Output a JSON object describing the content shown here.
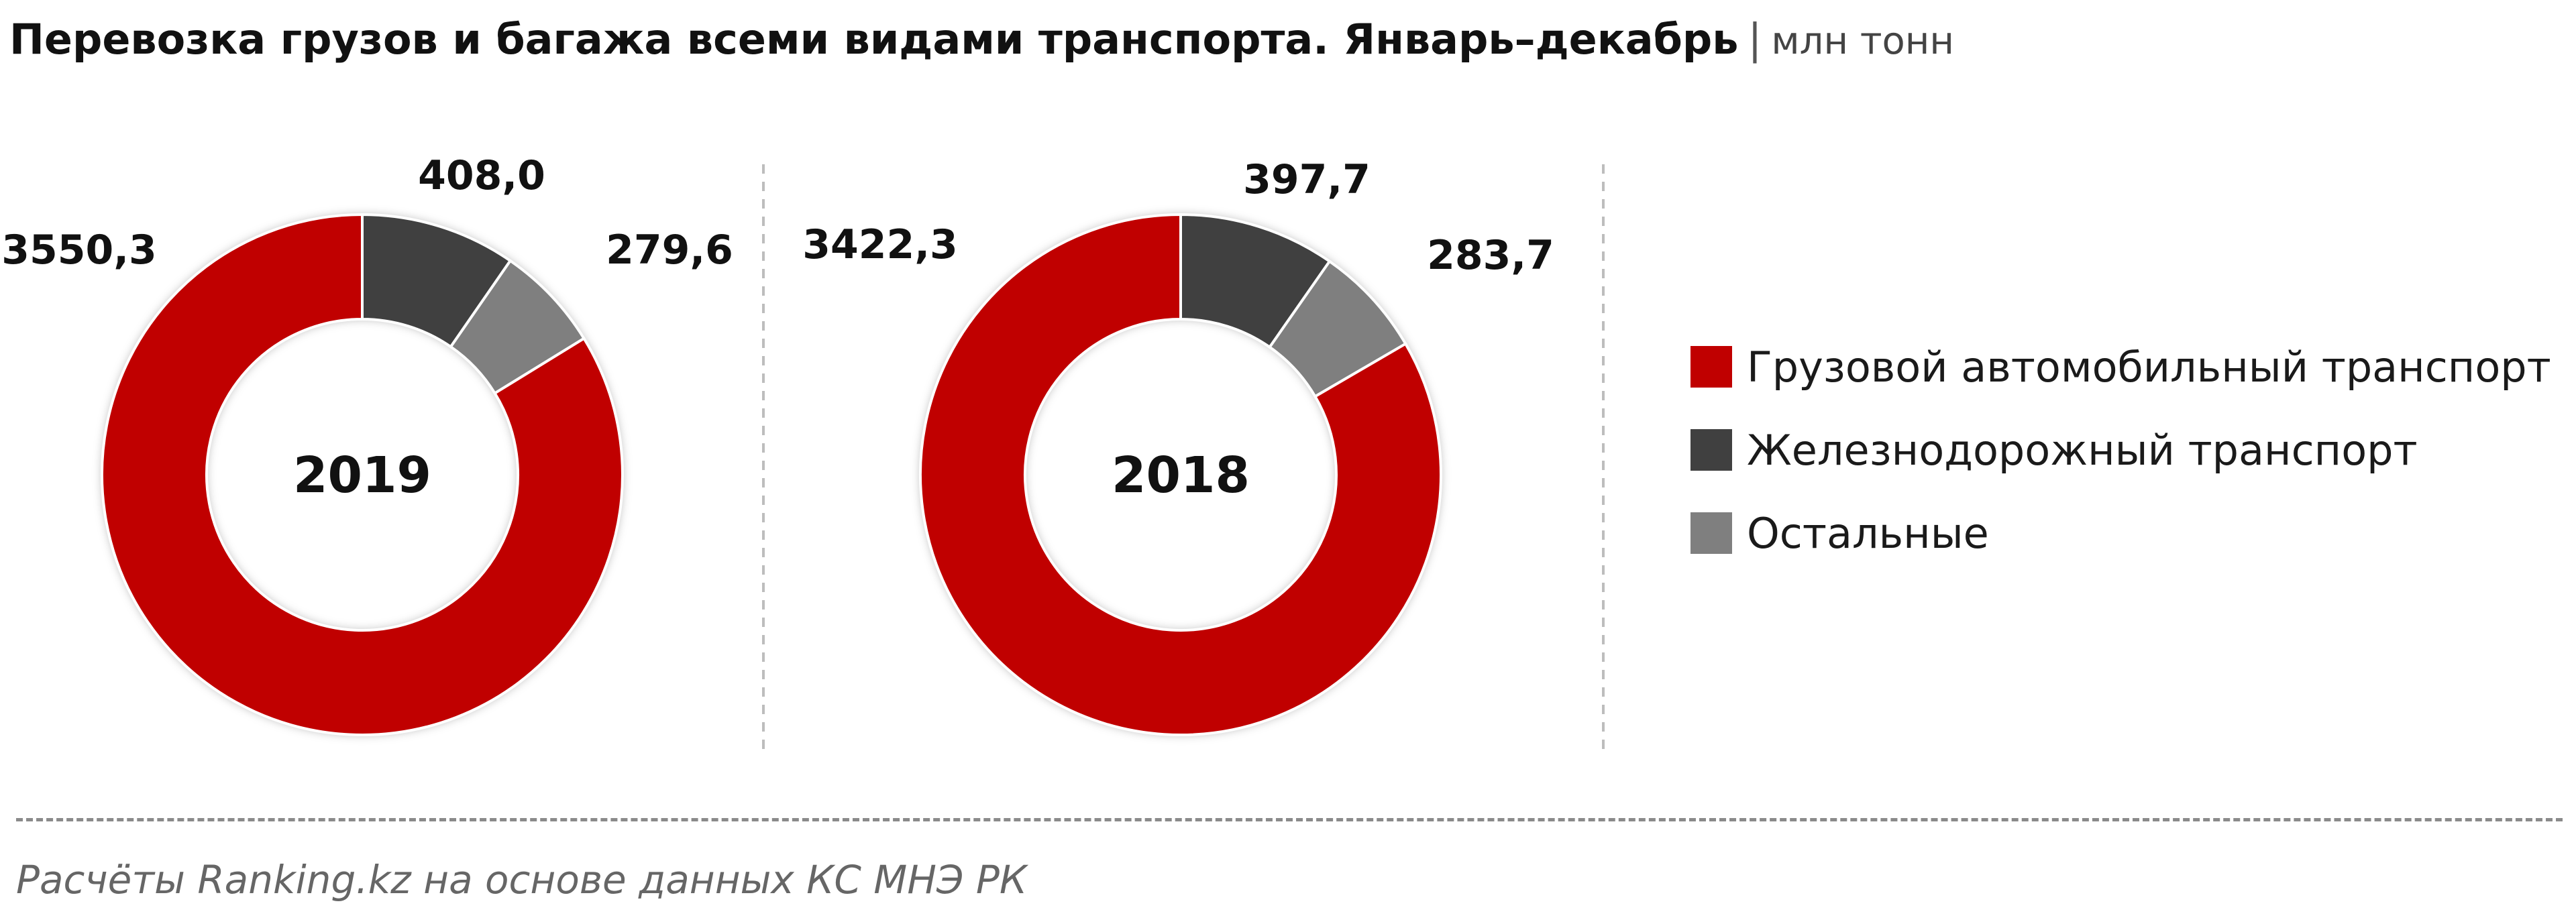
{
  "header": {
    "title": "Перевозка грузов и багажа всеми видами транспорта. Январь–декабрь",
    "separator": "|",
    "unit": "млн тонн"
  },
  "footer": {
    "source": "Расчёты Ranking.kz на основе данных  КС МНЭ РК"
  },
  "colors": {
    "road": "#c00000",
    "rail": "#404040",
    "other": "#7f7f7f"
  },
  "chart_data": {
    "type": "pie",
    "variant": "donut",
    "title": "Перевозка грузов и багажа всеми видами транспорта. Январь–декабрь",
    "unit": "млн тонн",
    "categories": [
      "Грузовой автомобильный транспорт",
      "Железнодорожный транспорт",
      "Остальные"
    ],
    "series": [
      {
        "name": "2019",
        "values": [
          3550.3,
          408.0,
          279.6
        ],
        "labels": [
          "3550,3",
          "408,0",
          "279,6"
        ]
      },
      {
        "name": "2018",
        "values": [
          3422.3,
          397.7,
          283.7
        ],
        "labels": [
          "3422,3",
          "397,7",
          "283,7"
        ]
      }
    ],
    "legend_position": "right"
  }
}
